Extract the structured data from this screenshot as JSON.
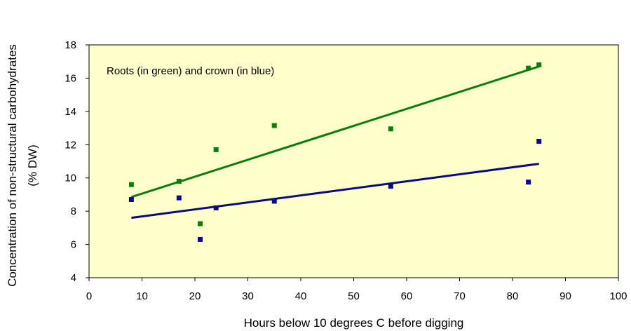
{
  "chart_data": {
    "type": "scatter",
    "xlabel": "Hours below 10 degrees C before digging",
    "ylabel_lines": [
      "Concentration of non-structural carbohydrates",
      "(% DW)"
    ],
    "annotation": "Roots (in green) and crown (in blue)",
    "xlim": [
      0,
      100
    ],
    "ylim": [
      4,
      18
    ],
    "xticks": [
      0,
      10,
      20,
      30,
      40,
      50,
      60,
      70,
      80,
      90,
      100
    ],
    "yticks": [
      4,
      6,
      8,
      10,
      12,
      14,
      16,
      18
    ],
    "grid": false,
    "plot_background": "#ffffcc",
    "series": [
      {
        "color": "#0a7d0a",
        "points": [
          [
            8,
            9.6
          ],
          [
            17,
            9.8
          ],
          [
            21,
            7.25
          ],
          [
            24,
            11.7
          ],
          [
            35,
            13.15
          ],
          [
            57,
            12.95
          ],
          [
            83,
            16.6
          ],
          [
            85,
            16.8
          ]
        ],
        "trendline": [
          [
            8,
            8.85
          ],
          [
            85,
            16.7
          ]
        ]
      },
      {
        "color": "#0b0b80",
        "points": [
          [
            8,
            8.7
          ],
          [
            17,
            8.8
          ],
          [
            21,
            6.3
          ],
          [
            24,
            8.2
          ],
          [
            35,
            8.6
          ],
          [
            57,
            9.5
          ],
          [
            83,
            9.75
          ],
          [
            85,
            12.2
          ]
        ],
        "trendline": [
          [
            8,
            7.6
          ],
          [
            85,
            10.85
          ]
        ]
      }
    ]
  }
}
